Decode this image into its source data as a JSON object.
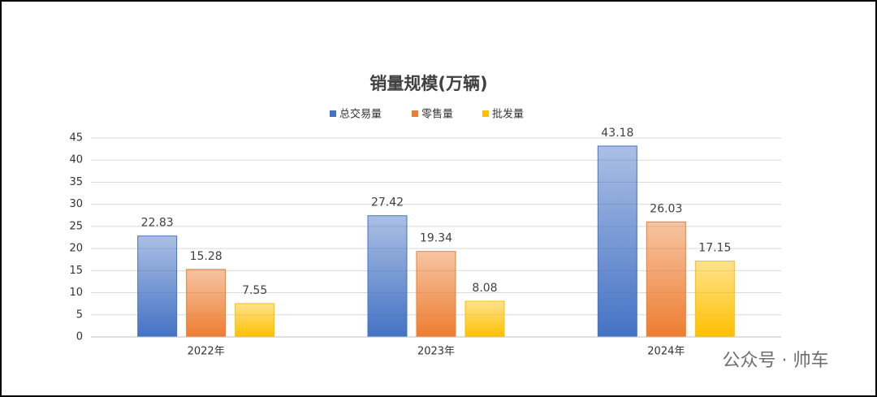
{
  "chart_data": {
    "type": "bar",
    "title": "销量规模(万辆)",
    "categories": [
      "2022年",
      "2023年",
      "2024年"
    ],
    "series": [
      {
        "name": "总交易量",
        "color": "#4472c4",
        "values": [
          22.83,
          27.42,
          43.18
        ]
      },
      {
        "name": "零售量",
        "color": "#ed7d31",
        "values": [
          15.28,
          19.34,
          26.03
        ]
      },
      {
        "name": "批发量",
        "color": "#ffc000",
        "values": [
          7.55,
          8.08,
          17.15
        ]
      }
    ],
    "ylim": [
      0,
      45
    ],
    "yticks": [
      0,
      5,
      10,
      15,
      20,
      25,
      30,
      35,
      40,
      45
    ],
    "grid": true,
    "legend": "top"
  },
  "watermark": "公众号 · 帅车"
}
